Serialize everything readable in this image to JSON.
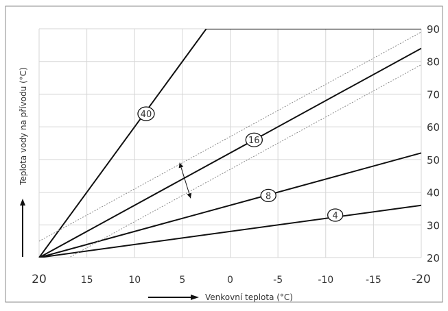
{
  "chart_data": {
    "type": "line",
    "xlabel": "Venkovní teplota (°C)",
    "ylabel": "Teplota vody na přívodu (°C)",
    "xlim": [
      20,
      -20
    ],
    "ylim": [
      20,
      90
    ],
    "x_ticks": [
      20,
      15,
      10,
      5,
      0,
      -5,
      -10,
      -15,
      -20
    ],
    "x_tick_labels": [
      "20",
      "15",
      "10",
      "5",
      "0",
      "-5",
      "-10",
      "-15",
      "-20"
    ],
    "y_ticks": [
      20,
      30,
      40,
      50,
      60,
      70,
      80,
      90
    ],
    "y_tick_labels": [
      "20",
      "30",
      "40",
      "50",
      "60",
      "70",
      "80",
      "90"
    ],
    "grid": true,
    "y_axis_side": "right",
    "series": [
      {
        "name": "40",
        "style": "solid-heavy",
        "x": [
          20,
          2.5,
          -20
        ],
        "y": [
          20,
          90,
          90
        ],
        "label_at": [
          8.8,
          64
        ]
      },
      {
        "name": "16",
        "style": "solid-heavy",
        "x": [
          20,
          -20
        ],
        "y": [
          20,
          84
        ],
        "label_at": [
          -2.5,
          56
        ]
      },
      {
        "name": "8",
        "style": "solid-heavy",
        "x": [
          20,
          -20
        ],
        "y": [
          20,
          52
        ],
        "label_at": [
          -4,
          39
        ]
      },
      {
        "name": "4",
        "style": "solid-heavy",
        "x": [
          20,
          -20
        ],
        "y": [
          20,
          36
        ],
        "label_at": [
          -11,
          33
        ]
      },
      {
        "name": "",
        "style": "dotted",
        "x": [
          20,
          -20
        ],
        "y": [
          25,
          89
        ]
      },
      {
        "name": "",
        "style": "dotted",
        "x": [
          20,
          -20
        ],
        "y": [
          15,
          79
        ]
      }
    ],
    "annotations": [
      {
        "type": "double-arrow",
        "at_x": 5
      }
    ]
  }
}
